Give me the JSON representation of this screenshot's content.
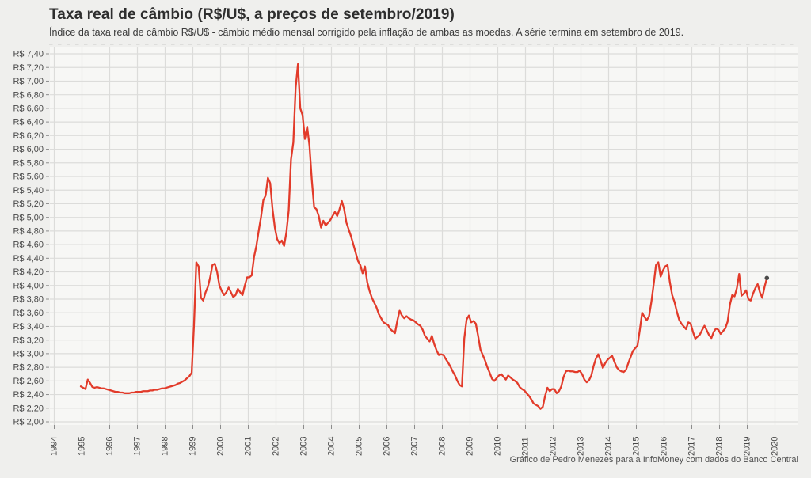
{
  "header": {
    "title": "Taxa real de câmbio (R$/U$, a preços de setembro/2019)",
    "subtitle": "Índice da taxa real de câmbio R$/U$ - câmbio médio mensal corrigido pela inflação de ambas as moedas. A série termina em setembro de 2019."
  },
  "footer": {
    "caption": "Gráfico de Pedro Menezes para a InfoMoney com dados do Banco Central"
  },
  "chart_data": {
    "type": "line",
    "title": "Taxa real de câmbio (R$/U$, a preços de setembro/2019)",
    "series_name": "Taxa real de câmbio R$/U$ (mensal)",
    "frequency": "monthly",
    "start": {
      "year": 1994,
      "month": 12
    },
    "end": {
      "year": 2019,
      "month": 9
    },
    "ylim": [
      2.0,
      7.4
    ],
    "xlim": [
      1994,
      2020.4
    ],
    "grid": true,
    "legend": "none",
    "line_color": "#e23b2a",
    "endpoint_color": "#4a4a4a",
    "plot_bg_color": "#f7f7f5",
    "page_bg_color": "#efefed",
    "grid_color": "#dcdcda",
    "y_tick_labels": [
      "R$ 2,00",
      "R$ 2,20",
      "R$ 2,40",
      "R$ 2,60",
      "R$ 2,80",
      "R$ 3,00",
      "R$ 3,20",
      "R$ 3,40",
      "R$ 3,60",
      "R$ 3,80",
      "R$ 4,00",
      "R$ 4,20",
      "R$ 4,40",
      "R$ 4,60",
      "R$ 4,80",
      "R$ 5,00",
      "R$ 5,20",
      "R$ 5,40",
      "R$ 5,60",
      "R$ 5,80",
      "R$ 6,00",
      "R$ 6,20",
      "R$ 6,40",
      "R$ 6,60",
      "R$ 6,80",
      "R$ 7,00",
      "R$ 7,20",
      "R$ 7,40"
    ],
    "x_tick_labels": [
      "1994",
      "1995",
      "1996",
      "1997",
      "1998",
      "1999",
      "2000",
      "2001",
      "2002",
      "2003",
      "2004",
      "2005",
      "2006",
      "2007",
      "2008",
      "2009",
      "2010",
      "2011",
      "2012",
      "2013",
      "2014",
      "2015",
      "2016",
      "2017",
      "2018",
      "2019",
      "2020"
    ],
    "values": [
      2.52,
      2.5,
      2.48,
      2.62,
      2.57,
      2.51,
      2.5,
      2.51,
      2.5,
      2.49,
      2.49,
      2.48,
      2.47,
      2.46,
      2.45,
      2.44,
      2.44,
      2.43,
      2.43,
      2.42,
      2.42,
      2.42,
      2.43,
      2.43,
      2.44,
      2.44,
      2.44,
      2.45,
      2.45,
      2.45,
      2.46,
      2.46,
      2.47,
      2.47,
      2.48,
      2.49,
      2.49,
      2.5,
      2.51,
      2.52,
      2.53,
      2.54,
      2.56,
      2.57,
      2.59,
      2.61,
      2.64,
      2.67,
      2.72,
      3.42,
      4.34,
      4.28,
      3.82,
      3.78,
      3.9,
      3.98,
      4.12,
      4.3,
      4.32,
      4.2,
      4.0,
      3.92,
      3.86,
      3.9,
      3.97,
      3.9,
      3.83,
      3.86,
      3.95,
      3.9,
      3.86,
      4.0,
      4.12,
      4.12,
      4.15,
      4.42,
      4.58,
      4.8,
      5.0,
      5.25,
      5.32,
      5.58,
      5.5,
      5.12,
      4.85,
      4.68,
      4.62,
      4.66,
      4.58,
      4.78,
      5.1,
      5.85,
      6.1,
      6.9,
      7.25,
      6.6,
      6.5,
      6.15,
      6.33,
      6.05,
      5.55,
      5.15,
      5.12,
      5.02,
      4.85,
      4.95,
      4.88,
      4.92,
      4.96,
      5.02,
      5.08,
      5.02,
      5.12,
      5.24,
      5.12,
      4.92,
      4.82,
      4.72,
      4.6,
      4.48,
      4.36,
      4.3,
      4.18,
      4.28,
      4.05,
      3.92,
      3.82,
      3.75,
      3.68,
      3.58,
      3.52,
      3.46,
      3.44,
      3.42,
      3.36,
      3.33,
      3.3,
      3.48,
      3.63,
      3.56,
      3.52,
      3.55,
      3.52,
      3.5,
      3.49,
      3.46,
      3.43,
      3.41,
      3.35,
      3.26,
      3.22,
      3.18,
      3.26,
      3.14,
      3.05,
      2.98,
      2.99,
      2.98,
      2.92,
      2.87,
      2.81,
      2.74,
      2.68,
      2.6,
      2.54,
      2.52,
      3.22,
      3.5,
      3.56,
      3.46,
      3.48,
      3.44,
      3.26,
      3.06,
      2.98,
      2.9,
      2.8,
      2.72,
      2.63,
      2.6,
      2.64,
      2.68,
      2.7,
      2.66,
      2.62,
      2.68,
      2.65,
      2.62,
      2.6,
      2.57,
      2.51,
      2.48,
      2.46,
      2.42,
      2.38,
      2.33,
      2.27,
      2.25,
      2.23,
      2.19,
      2.22,
      2.38,
      2.5,
      2.45,
      2.48,
      2.48,
      2.42,
      2.45,
      2.52,
      2.66,
      2.74,
      2.75,
      2.74,
      2.74,
      2.73,
      2.73,
      2.75,
      2.7,
      2.62,
      2.58,
      2.61,
      2.68,
      2.82,
      2.93,
      2.99,
      2.9,
      2.79,
      2.86,
      2.91,
      2.94,
      2.97,
      2.88,
      2.8,
      2.76,
      2.74,
      2.73,
      2.76,
      2.86,
      2.95,
      3.04,
      3.08,
      3.12,
      3.35,
      3.6,
      3.54,
      3.49,
      3.55,
      3.76,
      4.02,
      4.3,
      4.34,
      4.13,
      4.22,
      4.28,
      4.3,
      4.05,
      3.86,
      3.76,
      3.62,
      3.5,
      3.44,
      3.4,
      3.36,
      3.46,
      3.44,
      3.32,
      3.22,
      3.25,
      3.28,
      3.35,
      3.41,
      3.34,
      3.27,
      3.23,
      3.32,
      3.37,
      3.35,
      3.29,
      3.33,
      3.37,
      3.47,
      3.72,
      3.86,
      3.84,
      3.96,
      4.17,
      3.85,
      3.88,
      3.93,
      3.8,
      3.78,
      3.88,
      3.96,
      4.02,
      3.9,
      3.82,
      3.98,
      4.11
    ]
  }
}
